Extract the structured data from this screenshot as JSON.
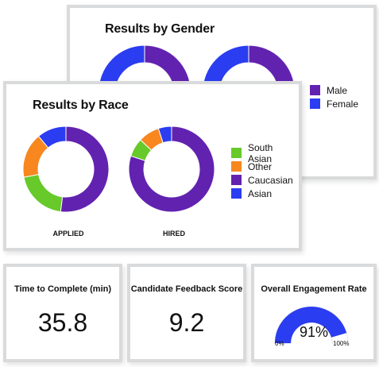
{
  "colors": {
    "male": "#6222b0",
    "female": "#2b3df0",
    "south_asian": "#67c92a",
    "other": "#f7871e",
    "caucasian": "#6222b0",
    "asian": "#2b3df0",
    "gauge_fill": "#2b3df0",
    "gauge_track": "#ffffff"
  },
  "chart_data": [
    {
      "type": "pie",
      "title": "Results by Gender",
      "legend": {
        "placement": "right",
        "entries": [
          "Male",
          "Female"
        ]
      },
      "donuts": [
        {
          "caption": "",
          "slices": [
            {
              "label": "Male",
              "value": 50
            },
            {
              "label": "Female",
              "value": 50
            }
          ]
        },
        {
          "caption": "",
          "slices": [
            {
              "label": "Male",
              "value": 50
            },
            {
              "label": "Female",
              "value": 50
            }
          ]
        }
      ]
    },
    {
      "type": "pie",
      "title": "Results by Race",
      "legend": {
        "placement": "right",
        "entries": [
          "South Asian",
          "Other",
          "Caucasian",
          "Asian"
        ]
      },
      "donuts": [
        {
          "caption": "APPLIED",
          "slices": [
            {
              "label": "Caucasian",
              "value": 52
            },
            {
              "label": "South Asian",
              "value": 20
            },
            {
              "label": "Other",
              "value": 17
            },
            {
              "label": "Asian",
              "value": 11
            }
          ]
        },
        {
          "caption": "HIRED",
          "slices": [
            {
              "label": "Caucasian",
              "value": 80
            },
            {
              "label": "South Asian",
              "value": 7
            },
            {
              "label": "Other",
              "value": 8
            },
            {
              "label": "Asian",
              "value": 5
            }
          ]
        }
      ]
    }
  ],
  "metrics": {
    "time": {
      "label": "Time to Complete (min)",
      "value": "35.8"
    },
    "feedback": {
      "label": "Candidate Feedback Score",
      "value": "9.2"
    },
    "engagement": {
      "label": "Overall Engagement Rate",
      "value_text": "91%",
      "fraction": 0.91,
      "min_label": "0%",
      "max_label": "100%"
    }
  }
}
